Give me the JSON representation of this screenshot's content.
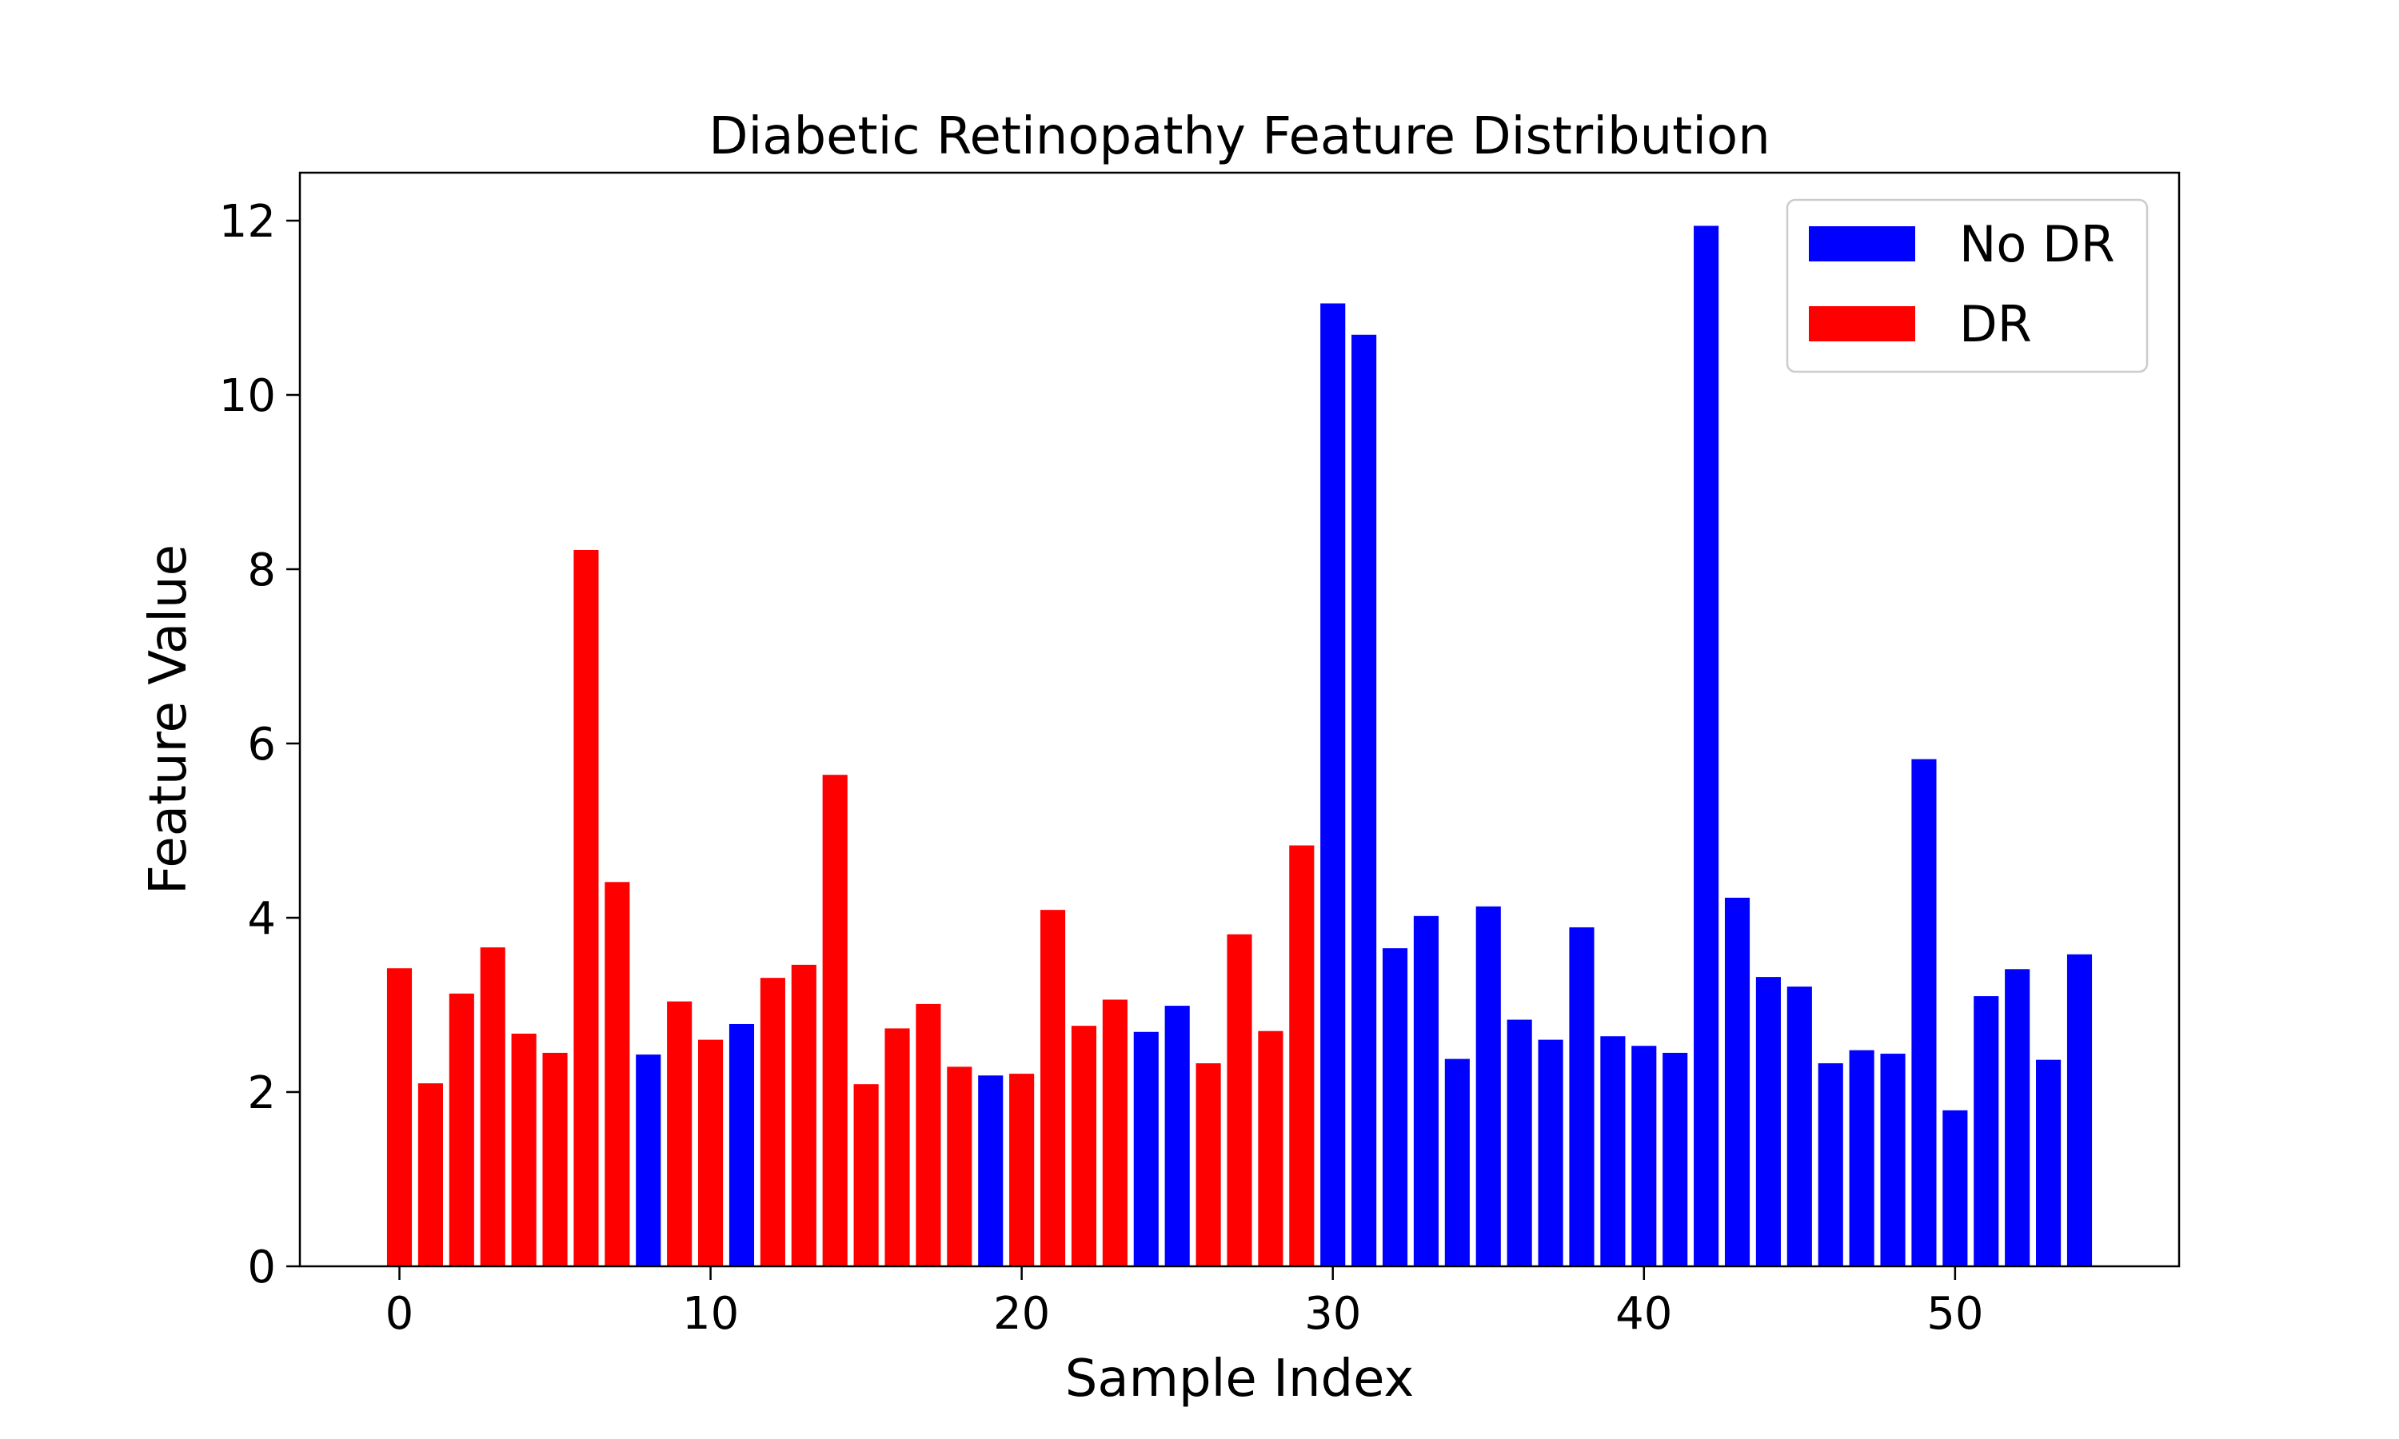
{
  "chart_data": {
    "type": "bar",
    "title": "Diabetic Retinopathy Feature Distribution",
    "xlabel": "Sample Index",
    "ylabel": "Feature Value",
    "xlim": [
      -3.2,
      57.2
    ],
    "ylim": [
      0,
      12.55
    ],
    "xticks": [
      0,
      10,
      20,
      30,
      40,
      50
    ],
    "yticks": [
      0,
      2,
      4,
      6,
      8,
      10,
      12
    ],
    "grid": false,
    "legend_position": "top-right",
    "legend": [
      {
        "label": "No DR",
        "color": "#0000ff"
      },
      {
        "label": "DR",
        "color": "#ff0000"
      }
    ],
    "colors": {
      "DR": "#ff0000",
      "No DR": "#0000ff"
    },
    "x": [
      0,
      1,
      2,
      3,
      4,
      5,
      6,
      7,
      8,
      9,
      10,
      11,
      12,
      13,
      14,
      15,
      16,
      17,
      18,
      19,
      20,
      21,
      22,
      23,
      24,
      25,
      26,
      27,
      28,
      29,
      30,
      31,
      32,
      33,
      34,
      35,
      36,
      37,
      38,
      39,
      40,
      41,
      42,
      43,
      44,
      45,
      46,
      47,
      48,
      49,
      50,
      51,
      52,
      53,
      54
    ],
    "values": [
      3.42,
      2.1,
      3.13,
      3.66,
      2.67,
      2.45,
      8.22,
      4.41,
      2.43,
      3.04,
      2.6,
      2.78,
      3.31,
      3.46,
      5.64,
      2.09,
      2.73,
      3.01,
      2.29,
      2.19,
      2.21,
      4.09,
      2.76,
      3.06,
      2.69,
      2.99,
      2.33,
      3.81,
      2.7,
      4.83,
      11.05,
      10.69,
      3.65,
      4.02,
      2.38,
      4.13,
      2.83,
      2.6,
      3.89,
      2.64,
      2.53,
      2.45,
      11.94,
      4.23,
      3.32,
      3.21,
      2.33,
      2.48,
      2.44,
      5.82,
      1.79,
      3.1,
      3.41,
      2.37,
      3.58
    ],
    "labels": [
      "DR",
      "DR",
      "DR",
      "DR",
      "DR",
      "DR",
      "DR",
      "DR",
      "No DR",
      "DR",
      "DR",
      "No DR",
      "DR",
      "DR",
      "DR",
      "DR",
      "DR",
      "DR",
      "DR",
      "No DR",
      "DR",
      "DR",
      "DR",
      "DR",
      "No DR",
      "No DR",
      "DR",
      "DR",
      "DR",
      "DR",
      "No DR",
      "No DR",
      "No DR",
      "No DR",
      "No DR",
      "No DR",
      "No DR",
      "No DR",
      "No DR",
      "No DR",
      "No DR",
      "No DR",
      "No DR",
      "No DR",
      "No DR",
      "No DR",
      "No DR",
      "No DR",
      "No DR",
      "No DR",
      "No DR",
      "No DR",
      "No DR",
      "No DR",
      "No DR"
    ]
  }
}
